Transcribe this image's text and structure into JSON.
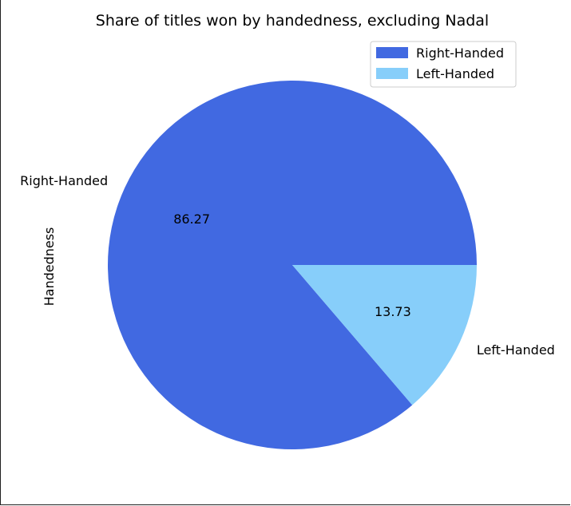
{
  "chart_data": {
    "type": "pie",
    "title": "Share of titles won by handedness, excluding Nadal",
    "ylabel": "Handedness",
    "labels": [
      "Right-Handed",
      "Left-Handed"
    ],
    "values": [
      86.27,
      13.73
    ],
    "value_labels": [
      "86.27",
      "13.73"
    ],
    "colors": [
      "#4169e1",
      "#87cefa"
    ],
    "start_angle_deg": 0,
    "direction": "counterclockwise",
    "legend": {
      "placement": "upper-right",
      "entries": [
        "Right-Handed",
        "Left-Handed"
      ]
    }
  }
}
